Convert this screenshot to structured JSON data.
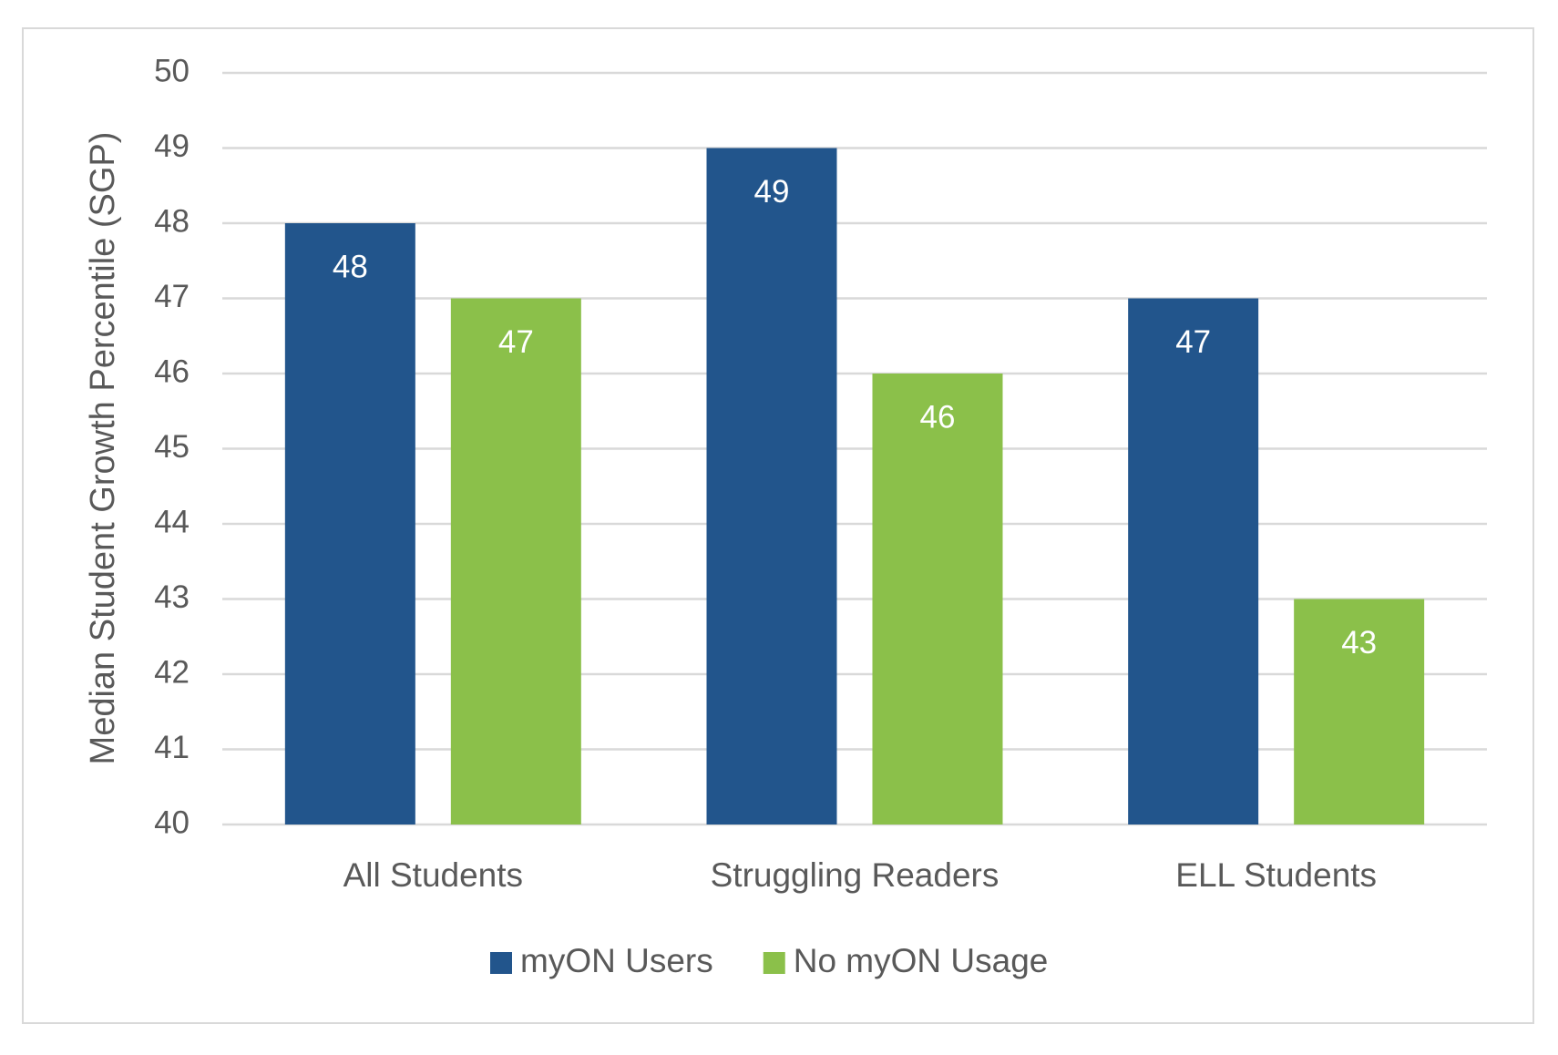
{
  "chart_data": {
    "type": "bar",
    "y_axis_label": "Median Student Growth Percentile (SGP)",
    "categories": [
      "All Students",
      "Struggling Readers",
      "ELL Students"
    ],
    "series": [
      {
        "name": "myON Users",
        "color": "#22558c",
        "values": [
          48,
          49,
          47
        ]
      },
      {
        "name": "No myON Usage",
        "color": "#8bc04a",
        "values": [
          47,
          46,
          43
        ]
      }
    ],
    "ylim": [
      40,
      50
    ],
    "yticks": [
      40,
      41,
      42,
      43,
      44,
      45,
      46,
      47,
      48,
      49,
      50
    ],
    "grid": true,
    "legend": "bottom",
    "data_labels": true
  }
}
